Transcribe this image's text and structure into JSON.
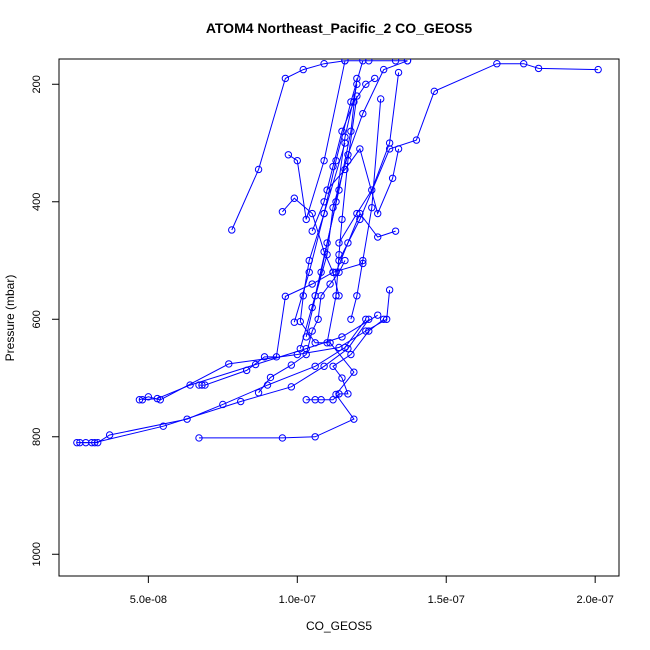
{
  "chart_data": {
    "type": "line",
    "title": "ATOM4 Northeast_Pacific_2 CO_GEOS5",
    "xlabel": "CO_GEOS5",
    "ylabel": "Pressure (mbar)",
    "xlim": [
      2e-08,
      2.08e-07
    ],
    "ylim": [
      1037,
      157
    ],
    "y_reversed": true,
    "x_ticks": [
      5e-08,
      1e-07,
      1.5e-07,
      2e-07
    ],
    "x_tick_labels": [
      "5.0e-08",
      "1.0e-07",
      "1.5e-07",
      "2.0e-07"
    ],
    "y_ticks": [
      200,
      400,
      600,
      800,
      1000
    ],
    "y_tick_labels": [
      "200",
      "400",
      "600",
      "800",
      "1000"
    ],
    "color": "#0000ff",
    "series": [
      {
        "x": [
          2.6e-08,
          2.9e-08,
          3.3e-08,
          3.7e-08,
          6.3e-08,
          7.5e-08,
          9e-08,
          1.06e-07,
          1.16e-07,
          1.23e-07
        ],
        "y": [
          810,
          810,
          810,
          797,
          770,
          745,
          712,
          680,
          648,
          600
        ]
      },
      {
        "x": [
          2.7e-08,
          3.1e-08,
          3.2e-08,
          5.5e-08,
          8.1e-08,
          9.8e-08,
          1.09e-07,
          1.17e-07,
          1.24e-07
        ],
        "y": [
          810,
          810,
          810,
          782,
          740,
          715,
          680,
          650,
          600
        ]
      },
      {
        "x": [
          6.7e-08,
          9.5e-08,
          1.06e-07,
          1.19e-07,
          1.13e-07,
          1.19e-07,
          1.11e-07,
          1.06e-07,
          1.01e-07,
          1.02e-07,
          1.04e-07,
          1.09e-07,
          1.16e-07
        ],
        "y": [
          802,
          802,
          800,
          770,
          728,
          690,
          640,
          640,
          604,
          560,
          500,
          420,
          300
        ]
      },
      {
        "x": [
          4.7e-08,
          5e-08,
          5.4e-08,
          7.7e-08,
          1e-07,
          1.14e-07,
          1.23e-07,
          1.3e-07,
          1.31e-07
        ],
        "y": [
          737,
          732,
          737,
          676,
          660,
          648,
          620,
          600,
          550
        ]
      },
      {
        "x": [
          4.8e-08,
          5.3e-08,
          6.4e-08,
          8.6e-08,
          1.03e-07,
          1.15e-07,
          1.27e-07
        ],
        "y": [
          737,
          735,
          712,
          677,
          650,
          630,
          593
        ]
      },
      {
        "x": [
          6.7e-08,
          6.8e-08,
          6.9e-08,
          8.3e-08,
          8.9e-08,
          9.3e-08,
          9.6e-08,
          1.05e-07,
          1.12e-07,
          1.22e-07
        ],
        "y": [
          712,
          712,
          712,
          687,
          664,
          664,
          561,
          540,
          520,
          505
        ]
      },
      {
        "x": [
          8.7e-08,
          9.1e-08,
          9.8e-08,
          1.03e-07,
          1.05e-07,
          1.07e-07,
          1.08e-07,
          1.11e-07,
          1.14e-07,
          1.16e-07
        ],
        "y": [
          725,
          699,
          678,
          660,
          620,
          600,
          560,
          540,
          520,
          500
        ]
      },
      {
        "x": [
          1.03e-07,
          1.06e-07,
          1.08e-07,
          1.12e-07,
          1.14e-07,
          1.17e-07,
          1.15e-07,
          1.12e-07,
          1.18e-07,
          1.24e-07,
          1.29e-07
        ],
        "y": [
          737,
          737,
          737,
          737,
          727,
          727,
          700,
          680,
          660,
          620,
          600
        ]
      },
      {
        "x": [
          7.8e-08,
          8.7e-08,
          9.6e-08,
          1.02e-07,
          1.09e-07,
          1.16e-07,
          1.24e-07,
          1.33e-07,
          1.37e-07
        ],
        "y": [
          448,
          345,
          190,
          175,
          165,
          160,
          160,
          160,
          160
        ]
      },
      {
        "x": [
          1.14e-07,
          1.21e-07,
          1.31e-07,
          1.4e-07,
          1.46e-07,
          1.67e-07,
          1.76e-07,
          1.81e-07,
          2.01e-07
        ],
        "y": [
          500,
          430,
          310,
          295,
          212,
          165,
          165,
          173,
          175
        ]
      },
      {
        "x": [
          9.5e-08,
          9.9e-08,
          1.05e-07,
          1.09e-07,
          1.12e-07,
          1.14e-07
        ],
        "y": [
          417,
          394,
          420,
          485,
          520,
          560
        ]
      },
      {
        "x": [
          9.9e-08,
          1.04e-07,
          1.09e-07,
          1.13e-07,
          1.18e-07,
          1.22e-07
        ],
        "y": [
          605,
          520,
          420,
          330,
          230,
          160
        ]
      },
      {
        "x": [
          1.01e-07,
          1.06e-07,
          1.1e-07,
          1.14e-07,
          1.18e-07,
          1.2e-07
        ],
        "y": [
          650,
          560,
          470,
          380,
          280,
          190
        ]
      },
      {
        "x": [
          1.03e-07,
          1.08e-07,
          1.13e-07,
          1.16e-07,
          1.2e-07
        ],
        "y": [
          630,
          520,
          400,
          290,
          200
        ]
      },
      {
        "x": [
          1.05e-07,
          1.1e-07,
          1.12e-07,
          1.17e-07,
          1.22e-07,
          1.29e-07,
          1.37e-07
        ],
        "y": [
          580,
          490,
          410,
          320,
          250,
          175,
          160
        ]
      },
      {
        "x": [
          9.7e-08,
          1e-07,
          1.03e-07,
          1.09e-07,
          1.16e-07
        ],
        "y": [
          320,
          330,
          430,
          330,
          160
        ]
      },
      {
        "x": [
          1.14e-07,
          1.2e-07,
          1.25e-07,
          1.31e-07,
          1.34e-07
        ],
        "y": [
          470,
          420,
          380,
          300,
          180
        ]
      },
      {
        "x": [
          1.1e-07,
          1.16e-07,
          1.21e-07,
          1.27e-07,
          1.32e-07,
          1.34e-07
        ],
        "y": [
          380,
          345,
          310,
          420,
          360,
          310
        ]
      },
      {
        "x": [
          1.13e-07,
          1.17e-07,
          1.21e-07,
          1.27e-07,
          1.33e-07
        ],
        "y": [
          520,
          470,
          420,
          460,
          450
        ]
      },
      {
        "x": [
          1.05e-07,
          1.09e-07,
          1.12e-07,
          1.15e-07,
          1.19e-07,
          1.23e-07,
          1.26e-07
        ],
        "y": [
          450,
          400,
          340,
          280,
          230,
          200,
          190
        ]
      },
      {
        "x": [
          1.18e-07,
          1.2e-07,
          1.22e-07,
          1.25e-07,
          1.28e-07
        ],
        "y": [
          600,
          560,
          500,
          410,
          225
        ]
      },
      {
        "x": [
          1.1e-07,
          1.13e-07,
          1.14e-07,
          1.15e-07,
          1.17e-07,
          1.2e-07
        ],
        "y": [
          640,
          560,
          490,
          430,
          330,
          220
        ]
      }
    ]
  }
}
